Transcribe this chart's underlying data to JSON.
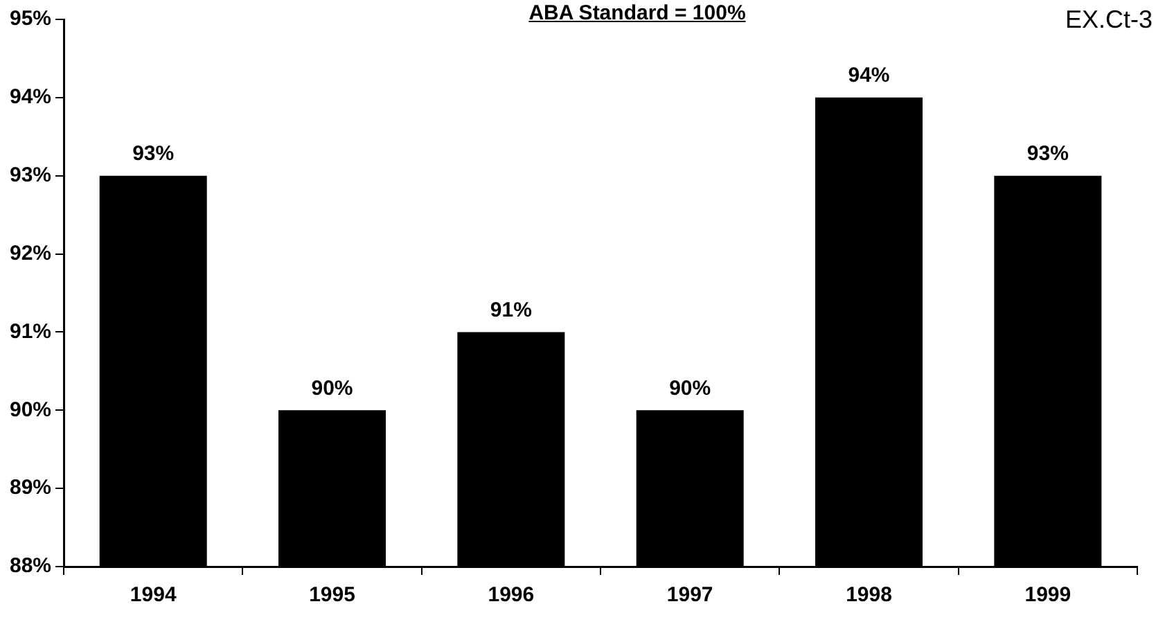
{
  "chart_data": {
    "type": "bar",
    "title": "ABA Standard = 100%",
    "annotations": [
      "EX.Ct-3"
    ],
    "categories": [
      "1994",
      "1995",
      "1996",
      "1997",
      "1998",
      "1999"
    ],
    "values": [
      93,
      90,
      91,
      90,
      94,
      93
    ],
    "color": "#000000",
    "value_labels": [
      "93%",
      "90%",
      "91%",
      "90%",
      "94%",
      "93%"
    ],
    "ylim": [
      88,
      95
    ],
    "yticks": [
      {
        "value": 88,
        "label": "88%"
      },
      {
        "value": 89,
        "label": "89%"
      },
      {
        "value": 90,
        "label": "90%"
      },
      {
        "value": 91,
        "label": "91%"
      },
      {
        "value": 92,
        "label": "92%"
      },
      {
        "value": 93,
        "label": "93%"
      },
      {
        "value": 94,
        "label": "94%"
      },
      {
        "value": 95,
        "label": "95%"
      }
    ],
    "grid": false,
    "legend": false
  }
}
